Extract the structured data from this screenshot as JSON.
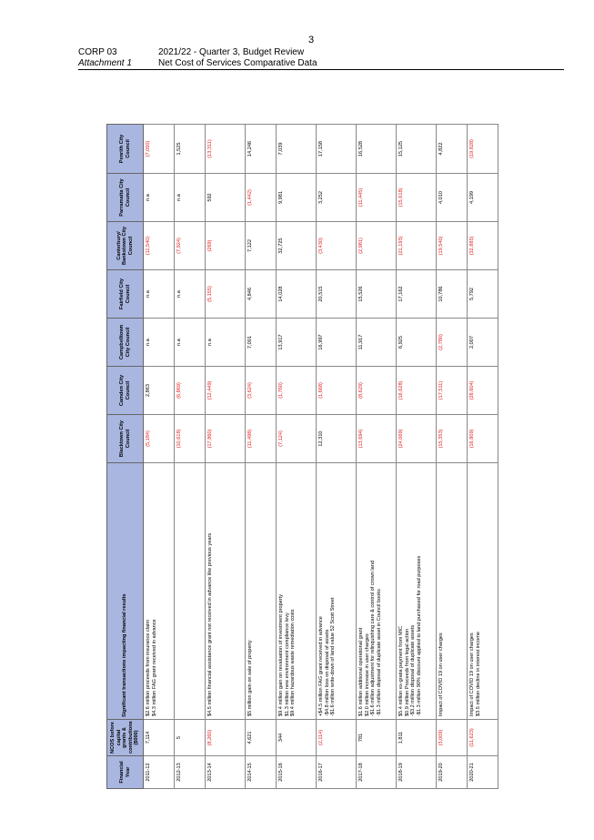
{
  "page_number": "3",
  "header": {
    "code": "CORP 03",
    "attachment": "Attachment 1",
    "title": "2021/22 - Quarter 3, Budget Review",
    "subtitle": "Net Cost of Services Comparative Data"
  },
  "table": {
    "columns": [
      "Financial Year",
      "NCOS before capital grants & contributions ($000)",
      "Significant transactions impacting financial results",
      "Blacktown City Council",
      "Camden City Council",
      "Campbelltown City Council",
      "Fairfield City Council",
      "Canterbury/ Bankstown City Council",
      "Parramatta City Council",
      "Penrith City Council"
    ],
    "rows": [
      {
        "year": "2011-12",
        "ncos": "7,114",
        "notes": [
          "$2.6 million proceeds from insurance claim",
          "$4.3 million FAG grant received in advance"
        ],
        "blacktown": "(5,184)",
        "camden": "2,863",
        "campbelltown": "n.a",
        "fairfield": "n.a",
        "canterbury": "(11,540)",
        "parramatta": "n.a",
        "penrith": "(7,050)"
      },
      {
        "year": "2012-13",
        "ncos": "5",
        "notes": [],
        "blacktown": "(10,618)",
        "camden": "(6,869)",
        "campbelltown": "n.a",
        "fairfield": "n.a",
        "canterbury": "(7,924)",
        "parramatta": "n.a",
        "penrith": "1,525"
      },
      {
        "year": "2013-14",
        "ncos": "(8,260)",
        "notes": [
          "$4.5 million financial assistance grant not received in advance like previous years"
        ],
        "blacktown": "(17,860)",
        "camden": "(12,449)",
        "campbelltown": "n.a",
        "fairfield": "(5,155)",
        "canterbury": "(269)",
        "parramatta": "592",
        "penrith": "(13,311)"
      },
      {
        "year": "2014-15",
        "ncos": "4,621",
        "notes": [
          "$5 million gain on sale of property"
        ],
        "blacktown": "(11,498)",
        "camden": "(3,624)",
        "campbelltown": "7,001",
        "fairfield": "4,846",
        "canterbury": "7,122",
        "parramatta": "(1,442)",
        "penrith": "14,246"
      },
      {
        "year": "2015-16",
        "ncos": "344",
        "notes": [
          "$9.4 million gain on revaluation of investment property",
          "$1.3 million new environment compliance levy",
          "$9.4 million hazardous waste remediation costs"
        ],
        "blacktown": "(7,124)",
        "camden": "(1,760)",
        "campbelltown": "13,917",
        "fairfield": "14,028",
        "canterbury": "32,725",
        "parramatta": "9,981",
        "penrith": "7,039"
      },
      {
        "year": "2016-17",
        "ncos": "(2,114)",
        "notes": [
          "+$4.5 million FAG grant received in advance",
          "-$4.8 million loss on disposal of assets",
          "-$1.6 million write-down of land value 52 Scott Street"
        ],
        "blacktown": "12,310",
        "camden": "(1,668)",
        "campbelltown": "16,997",
        "fairfield": "20,515",
        "canterbury": "(3,430)",
        "parramatta": "3,252",
        "penrith": "17,158"
      },
      {
        "year": "2017-18",
        "ncos": "781",
        "notes": [
          "$1.6 million additional operational grant",
          "$2.0 million increase in user charges",
          "-$1.6 million adjustment for relinquishing care & control of crown land",
          "-$1.3 million disposal of duplicate asset in Council books"
        ],
        "blacktown": "(13,694)",
        "camden": "(8,629)",
        "campbelltown": "11,917",
        "fairfield": "15,526",
        "canterbury": "(2,981)",
        "parramatta": "(11,445)",
        "penrith": "16,528"
      },
      {
        "year": "2018-19",
        "ncos": "1,811",
        "notes": [
          "$5.4 million ex-gratia payment from MIC",
          "$0.9 million Proceeds from legal action",
          "-$3.2 million disposal of duplicate assets",
          "-$1.3 million 90% discount applied to land purchased for road purposes"
        ],
        "blacktown": "(24,069)",
        "camden": "(16,628)",
        "campbelltown": "6,925",
        "fairfield": "17,162",
        "canterbury": "(21,193)",
        "parramatta": "(15,618)",
        "penrith": "15,125"
      },
      {
        "year": "2019-20",
        "ncos": "(3,009)",
        "notes": [
          "Impact of COVID 19 on user charges"
        ],
        "blacktown": "(15,353)",
        "camden": "(17,511)",
        "campbelltown": "(2,780)",
        "fairfield": "10,786",
        "canterbury": "(19,540)",
        "parramatta": "4,010",
        "penrith": "4,822"
      },
      {
        "year": "2020-21",
        "ncos": "(11,623)",
        "notes": [
          "Impact of COVID 19 on user charges",
          "$3.5 million decline in interest income"
        ],
        "blacktown": "(16,809)",
        "camden": "(28,604)",
        "campbelltown": "2,007",
        "fairfield": "5,792",
        "canterbury": "(32,885)",
        "parramatta": "4,199",
        "penrith": "(19,828)"
      }
    ]
  }
}
